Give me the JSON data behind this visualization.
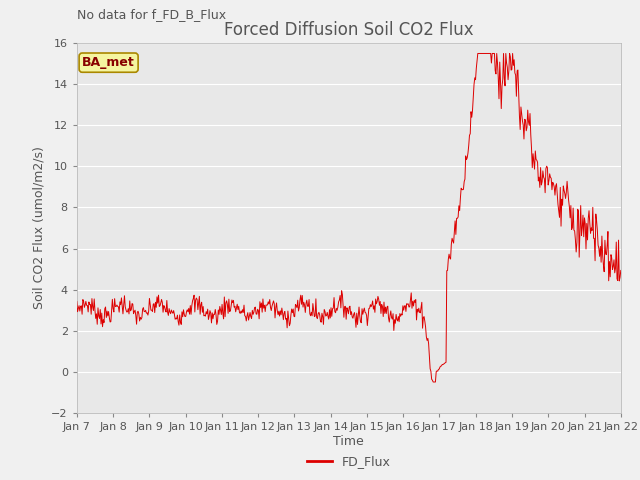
{
  "title": "Forced Diffusion Soil CO2 Flux",
  "xlabel": "Time",
  "ylabel": "Soil CO2 Flux (umol/m2/s)",
  "no_data_label": "No data for f_FD_B_Flux",
  "legend_label": "FD_Flux",
  "ba_met_label": "BA_met",
  "ylim": [
    -2,
    16
  ],
  "yticks": [
    -2,
    0,
    2,
    4,
    6,
    8,
    10,
    12,
    14,
    16
  ],
  "xlim": [
    0,
    15
  ],
  "line_color": "#dd0000",
  "bg_color": "#e8e8e8",
  "fig_bg_color": "#f0f0f0",
  "title_color": "#555555",
  "axis_label_color": "#555555",
  "tick_label_color": "#555555",
  "no_data_color": "#555555",
  "ba_box_facecolor": "#f5f5a0",
  "ba_box_edgecolor": "#aa8800",
  "ba_text_color": "#880000",
  "grid_color": "#ffffff",
  "x_tick_labels": [
    "Jan 7",
    "Jan 8",
    "Jan 9",
    "Jan 10",
    "Jan 11",
    "Jan 12",
    "Jan 13",
    "Jan 14",
    "Jan 15",
    "Jan 16",
    "Jan 17",
    "Jan 18",
    "Jan 19",
    "Jan 20",
    "Jan 21",
    "Jan 22"
  ],
  "title_fontsize": 12,
  "ylabel_fontsize": 9,
  "xlabel_fontsize": 9,
  "tick_fontsize": 8,
  "no_data_fontsize": 9,
  "ba_fontsize": 9,
  "legend_fontsize": 9
}
